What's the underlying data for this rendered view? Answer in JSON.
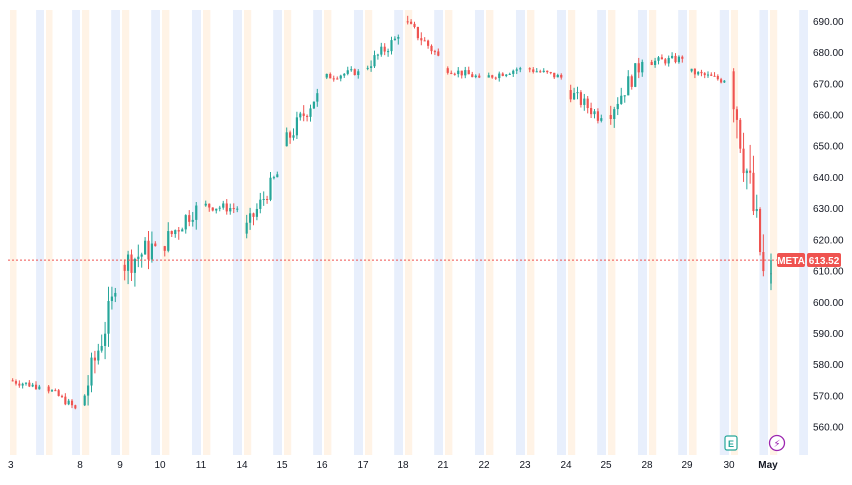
{
  "chart_data": {
    "type": "candlestick",
    "ticker": "META",
    "last_price": "613.52",
    "ylim": [
      553,
      693
    ],
    "y_ticks": [
      "560.00",
      "570.00",
      "580.00",
      "590.00",
      "600.00",
      "610.00",
      "620.00",
      "630.00",
      "640.00",
      "650.00",
      "660.00",
      "670.00",
      "680.00",
      "690.00"
    ],
    "x_labels": [
      "3",
      "8",
      "9",
      "10",
      "11",
      "14",
      "15",
      "16",
      "17",
      "18",
      "21",
      "22",
      "23",
      "24",
      "25",
      "28",
      "29",
      "30",
      "May"
    ],
    "events": [
      {
        "name": "earnings",
        "glyph": "E",
        "at_day": "30"
      },
      {
        "name": "dividend-or-split",
        "glyph": "⚡",
        "at_day": "May"
      }
    ],
    "colors": {
      "up": "#26a69a",
      "down": "#ef5350",
      "premarket": "#fff3e6",
      "afterhours": "#e8effc",
      "price_line": "#ef5350",
      "axis_text": "#131722"
    },
    "daily_path": [
      {
        "day": "3",
        "open": 575,
        "close": 573,
        "high": 582,
        "low": 572
      },
      {
        "day": "4",
        "open": 573,
        "close": 566,
        "high": 575,
        "low": 565
      },
      {
        "day": "8",
        "open": 567,
        "close": 603,
        "high": 606,
        "low": 565
      },
      {
        "day": "9",
        "open": 612,
        "close": 618,
        "high": 629,
        "low": 592
      },
      {
        "day": "10",
        "open": 618,
        "close": 631,
        "high": 638,
        "low": 610
      },
      {
        "day": "11",
        "open": 631,
        "close": 630,
        "high": 638,
        "low": 625
      },
      {
        "day": "14",
        "open": 622,
        "close": 641,
        "high": 643,
        "low": 620
      },
      {
        "day": "15",
        "open": 650,
        "close": 667,
        "high": 673,
        "low": 648
      },
      {
        "day": "16",
        "open": 672,
        "close": 674,
        "high": 677,
        "low": 668
      },
      {
        "day": "17",
        "open": 675,
        "close": 685,
        "high": 687,
        "low": 670
      },
      {
        "day": "18",
        "open": 690,
        "close": 679,
        "high": 692,
        "low": 676
      },
      {
        "day": "21",
        "open": 675,
        "close": 672,
        "high": 678,
        "low": 668
      },
      {
        "day": "22",
        "open": 672,
        "close": 675,
        "high": 677,
        "low": 669
      },
      {
        "day": "23",
        "open": 675,
        "close": 672,
        "high": 676,
        "low": 668
      },
      {
        "day": "24",
        "open": 668,
        "close": 659,
        "high": 672,
        "low": 654
      },
      {
        "day": "25",
        "open": 660,
        "close": 677,
        "high": 680,
        "low": 655
      },
      {
        "day": "28",
        "open": 677,
        "close": 678,
        "high": 683,
        "low": 672
      },
      {
        "day": "29",
        "open": 674,
        "close": 671,
        "high": 675,
        "low": 666
      },
      {
        "day": "30",
        "open": 674,
        "close": 610,
        "high": 675,
        "low": 603
      },
      {
        "day": "May",
        "open": 606,
        "close": 613.52,
        "high": 620,
        "low": 600
      }
    ]
  }
}
